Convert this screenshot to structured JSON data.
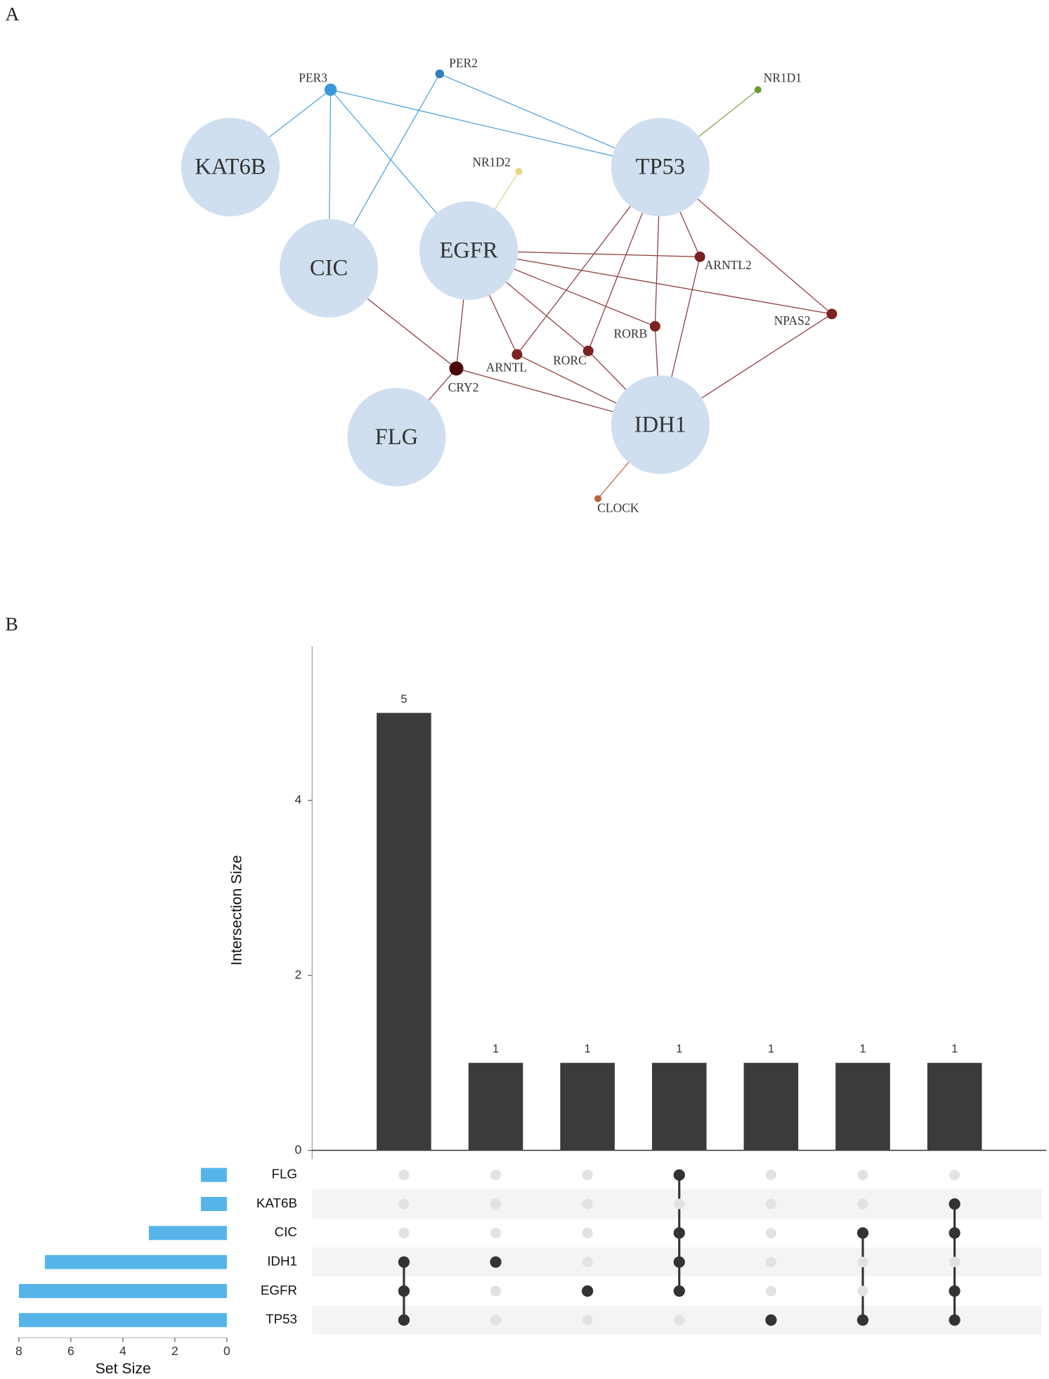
{
  "network": {
    "panel_label": "A",
    "nodes": [
      "KAT6B",
      "CIC",
      "EGFR",
      "TP53",
      "FLG",
      "IDH1",
      "PER3",
      "PER2",
      "NR1D1",
      "NR1D2",
      "ARNTL2",
      "NPAS2",
      "RORB",
      "RORC",
      "ARNTL",
      "CRY2",
      "CLOCK"
    ]
  },
  "chart_data": {
    "type": "upset",
    "panel_label": "B",
    "y_label": "Intersection Size",
    "x_label": "Set Size",
    "values": [
      5,
      1,
      1,
      1,
      1,
      1,
      1
    ],
    "color": "#3a3b3b",
    "ylim": [
      0,
      5.76
    ],
    "yticks": [
      0,
      2,
      4
    ],
    "sets": [
      "FLG",
      "KAT6B",
      "CIC",
      "IDH1",
      "EGFR",
      "TP53"
    ],
    "set_sizes": [
      1,
      1,
      3,
      7,
      8,
      8
    ],
    "set_color": "#56b4e9",
    "xlim": [
      0,
      8.05
    ],
    "xticks": [
      8,
      6,
      4,
      2,
      0
    ],
    "membership": [
      [
        0,
        0,
        0,
        1,
        1,
        1
      ],
      [
        0,
        0,
        0,
        1,
        0,
        0
      ],
      [
        0,
        0,
        0,
        0,
        1,
        0
      ],
      [
        1,
        0,
        1,
        1,
        1,
        0
      ],
      [
        0,
        0,
        0,
        0,
        0,
        1
      ],
      [
        0,
        0,
        1,
        0,
        0,
        1
      ],
      [
        0,
        1,
        1,
        0,
        1,
        1
      ]
    ]
  }
}
